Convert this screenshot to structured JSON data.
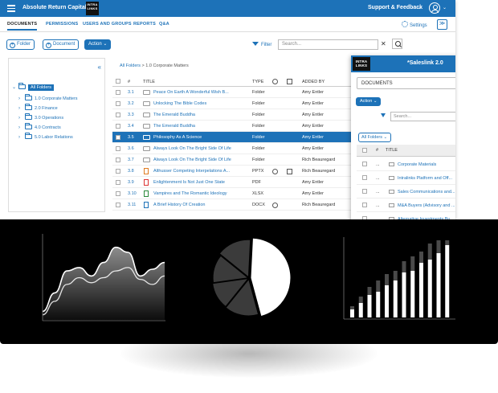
{
  "app": {
    "title": "Absolute Return Capital",
    "logo_text": "INTRA LINKS",
    "support_label": "Support & Feedback",
    "support_caret": "⌄",
    "user_caret": "⌄"
  },
  "tabs": [
    {
      "label": "DOCUMENTS",
      "active": true
    },
    {
      "label": "PERMISSIONS",
      "active": false
    },
    {
      "label": "USERS AND GROUPS",
      "active": false
    },
    {
      "label": "REPORTS",
      "active": false
    },
    {
      "label": "Q&A",
      "active": false
    }
  ],
  "header_right": {
    "settings_label": "Settings",
    "collapse_glyph": "≫"
  },
  "toolbar": {
    "folder_label": "Folder",
    "document_label": "Document",
    "action_label": "Action",
    "filter_label": "Filter",
    "search_placeholder": "Search...",
    "clear_glyph": "✕"
  },
  "tree": {
    "collapse_glyph": "«",
    "items": [
      {
        "label": "All Folders",
        "selected": true,
        "level": 0,
        "arrow": "⌄"
      },
      {
        "label": "1.0 Corporate Matters",
        "selected": false,
        "level": 1,
        "arrow": "›"
      },
      {
        "label": "2.0 Finance",
        "selected": false,
        "level": 1,
        "arrow": "›"
      },
      {
        "label": "3.0 Operations",
        "selected": false,
        "level": 1,
        "arrow": "›"
      },
      {
        "label": "4.0 Contracts",
        "selected": false,
        "level": 1,
        "arrow": "›"
      },
      {
        "label": "5.0 Labor Relations",
        "selected": false,
        "level": 1,
        "arrow": "›"
      }
    ]
  },
  "breadcrumb": {
    "root": "All Folders",
    "sep": " > ",
    "current": "1.0 Corporate Matters"
  },
  "table": {
    "columns": {
      "num": "#",
      "title": "TITLE",
      "type": "TYPE",
      "added_by": "ADDED BY"
    },
    "rows": [
      {
        "num": "3.1",
        "title": "Peace On Earth A Wonderful Wish B...",
        "type": "Folder",
        "added_by": "Amy Entler",
        "kind": "folder",
        "selected": false
      },
      {
        "num": "3.2",
        "title": "Unlocking The Bible Codes",
        "type": "Folder",
        "added_by": "Amy Entler",
        "kind": "folder",
        "selected": false
      },
      {
        "num": "3.3",
        "title": "The Emerald Buddha",
        "type": "Folder",
        "added_by": "Amy Entler",
        "kind": "folder",
        "selected": false
      },
      {
        "num": "3.4",
        "title": "The Emerald Buddha",
        "type": "Folder",
        "added_by": "Amy Entler",
        "kind": "folder",
        "selected": false
      },
      {
        "num": "3.5",
        "title": "Philosophy As A Science",
        "type": "Folder",
        "added_by": "Amy Entler",
        "kind": "folder",
        "selected": true
      },
      {
        "num": "3.6",
        "title": "Always Look On The Bright Side Of Life",
        "type": "Folder",
        "added_by": "Amy Entler",
        "kind": "folder",
        "selected": false
      },
      {
        "num": "3.7",
        "title": "Always Look On The Bright Side Of Life",
        "type": "Folder",
        "added_by": "Rich Beauregard",
        "kind": "folder",
        "selected": false
      },
      {
        "num": "3.8",
        "title": "Althusser Competing Interpelations A...",
        "type": "PPTX",
        "added_by": "Rich Beauregard",
        "kind": "pptx",
        "selected": false
      },
      {
        "num": "3.9",
        "title": "Enlightenment Is Not Just One State",
        "type": "PDF",
        "added_by": "Amy Entler",
        "kind": "pdf",
        "selected": false
      },
      {
        "num": "3.10",
        "title": "Vampires and The Romantic Ideology",
        "type": "XLSX",
        "added_by": "Amy Entler",
        "kind": "xlsx",
        "selected": false
      },
      {
        "num": "3.11",
        "title": "A Brief History Of Creation",
        "type": "DOCX",
        "added_by": "Rich Beauregard",
        "kind": "docx",
        "selected": false
      }
    ]
  },
  "panel": {
    "logo_text": "INTRA LINKS",
    "title": "*Saleslink 2.0",
    "dropdown_value": "DOCUMENTS",
    "dropdown_chev": "⌄",
    "action_label": "Action",
    "search_placeholder": "Search...",
    "search_chev": "⌄",
    "clear_glyph": "✕",
    "all_folders_label": "All Folders",
    "columns": {
      "num": "#",
      "title": "TITLE",
      "more": "..."
    },
    "rows": [
      {
        "title": "Corporate Materials",
        "more": "..."
      },
      {
        "title": "Intralinks Platform and Off...",
        "more": "..."
      },
      {
        "title": "Sales Communications and...",
        "more": "..."
      },
      {
        "title": "M&A Buyers (Advisory and ...",
        "more": "..."
      },
      {
        "title": "Alternative Investments Bu...",
        "more": "..."
      }
    ]
  },
  "charts": {
    "area": {
      "type": "area",
      "x": [
        0,
        1,
        2,
        3,
        4,
        5,
        6,
        7,
        8,
        9,
        10
      ],
      "series": [
        {
          "values": [
            10,
            32,
            58,
            62,
            52,
            68,
            86,
            80,
            52,
            60,
            68
          ]
        },
        {
          "values": [
            6,
            22,
            42,
            50,
            44,
            50,
            58,
            62,
            48,
            42,
            52
          ]
        }
      ]
    },
    "pie": {
      "type": "pie",
      "values": [
        45,
        15,
        12,
        13,
        15
      ]
    },
    "bars": {
      "type": "bar",
      "categories": [
        "1",
        "2",
        "3",
        "4",
        "5",
        "6",
        "7",
        "8",
        "9",
        "10",
        "11",
        "12"
      ],
      "series": [
        {
          "values": [
            10,
            18,
            28,
            32,
            40,
            46,
            56,
            58,
            68,
            72,
            80,
            90
          ]
        },
        {
          "values": [
            4,
            8,
            10,
            14,
            14,
            12,
            14,
            18,
            14,
            20,
            16,
            6
          ]
        }
      ]
    }
  },
  "colors": {
    "brand": "#1d72b8",
    "dark_bg": "#000000"
  }
}
